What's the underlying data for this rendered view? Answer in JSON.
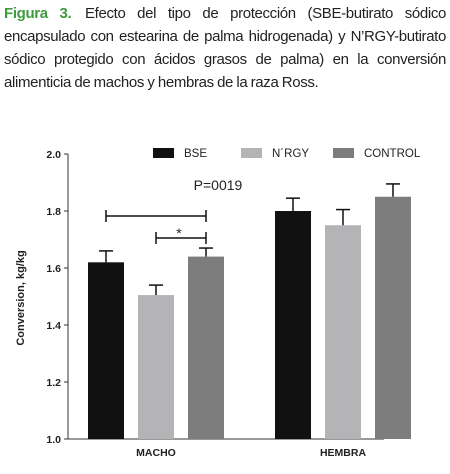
{
  "caption": {
    "figure_label": "Figura 3.",
    "text": "Efecto del tipo de protección (SBE-butirato sódico encapsulado con estearina de palma hidrogenada) y N’RGY-butirato sódico protegido con ácidos grasos de palma) en la conversión alimenticia de machos y hembras de la raza Ross."
  },
  "colors": {
    "figure_label": "#3d9a3d",
    "series": [
      "#111111",
      "#b4b4b7",
      "#7d7d7d"
    ],
    "axis": "#333333"
  },
  "chart_data": {
    "type": "bar",
    "categories": [
      "MACHO",
      "HEMBRA"
    ],
    "series": [
      {
        "name": "BSE",
        "values": [
          1.62,
          1.8
        ],
        "errors": [
          0.04,
          0.045
        ]
      },
      {
        "name": "N´RGY",
        "values": [
          1.505,
          1.75
        ],
        "errors": [
          0.035,
          0.055
        ]
      },
      {
        "name": "CONTROL",
        "values": [
          1.64,
          1.85
        ],
        "errors": [
          0.03,
          0.045
        ]
      }
    ],
    "ylabel": "Conversion, kg/kg",
    "ylim": [
      1.0,
      2.0
    ],
    "yticks": [
      "1.0",
      "1.2",
      "1.4",
      "1.6",
      "1.8",
      "2.0"
    ],
    "legend_position": "top",
    "grid": false,
    "annotations": {
      "p_value": "P=0019",
      "significance_marker": "*"
    }
  }
}
